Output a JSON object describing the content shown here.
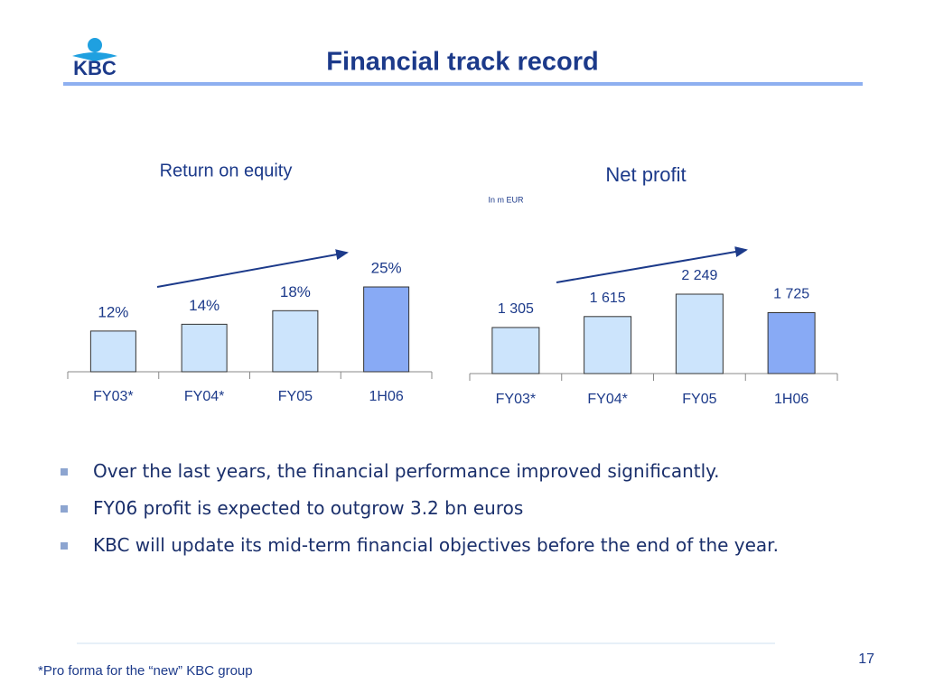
{
  "slide": {
    "logo_text": "KBC",
    "title": "Financial track record",
    "bullets": [
      "Over the last years, the financial performance improved significantly.",
      "FY06 profit is expected to outgrow 3.2 bn euros",
      "KBC will update its mid-term financial objectives before the end of the year."
    ],
    "footnote": "*Pro forma for the “new” KBC group",
    "page_number": "17"
  },
  "chart_data": [
    {
      "type": "bar",
      "title": "Return on equity",
      "categories": [
        "FY03*",
        "FY04*",
        "FY05",
        "1H06"
      ],
      "values": [
        12,
        14,
        18,
        25
      ],
      "value_labels": [
        "12%",
        "14%",
        "18%",
        "25%"
      ],
      "colors": [
        "#cce4fc",
        "#cce4fc",
        "#cce4fc",
        "#88aaf5"
      ]
    },
    {
      "type": "bar",
      "title": "Net profit",
      "subtitle": "In m EUR",
      "categories": [
        "FY03*",
        "FY04*",
        "FY05",
        "1H06"
      ],
      "values": [
        1305,
        1615,
        2249,
        1725
      ],
      "value_labels": [
        "1 305",
        "1 615",
        "2 249",
        "1 725"
      ],
      "colors": [
        "#cce4fc",
        "#cce4fc",
        "#cce4fc",
        "#88aaf5"
      ]
    }
  ]
}
